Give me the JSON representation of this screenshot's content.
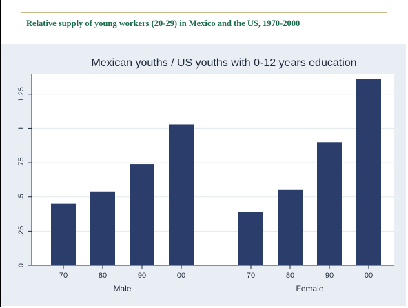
{
  "slide": {
    "header": "Relative supply of young workers (20-29) in Mexico and the US, 1970-2000"
  },
  "chart_data": {
    "type": "bar",
    "title": "Mexican youths / US youths with 0-12 years education",
    "xlabel": "",
    "ylabel": "",
    "ylim": [
      0,
      1.4
    ],
    "yticks": [
      0,
      0.25,
      0.5,
      0.75,
      1,
      1.25
    ],
    "ytick_labels": [
      "0",
      ".25",
      ".5",
      ".75",
      "1",
      "1.25"
    ],
    "grid": true,
    "bar_color": "#2b3d6b",
    "plot_background": "#ffffff",
    "outer_background": "#e8eef4",
    "groups": [
      {
        "label": "Male",
        "categories": [
          "70",
          "80",
          "90",
          "00"
        ],
        "values": [
          0.45,
          0.54,
          0.74,
          1.03
        ]
      },
      {
        "label": "Female",
        "categories": [
          "70",
          "80",
          "90",
          "00"
        ],
        "values": [
          0.39,
          0.55,
          0.9,
          1.36
        ]
      }
    ]
  }
}
